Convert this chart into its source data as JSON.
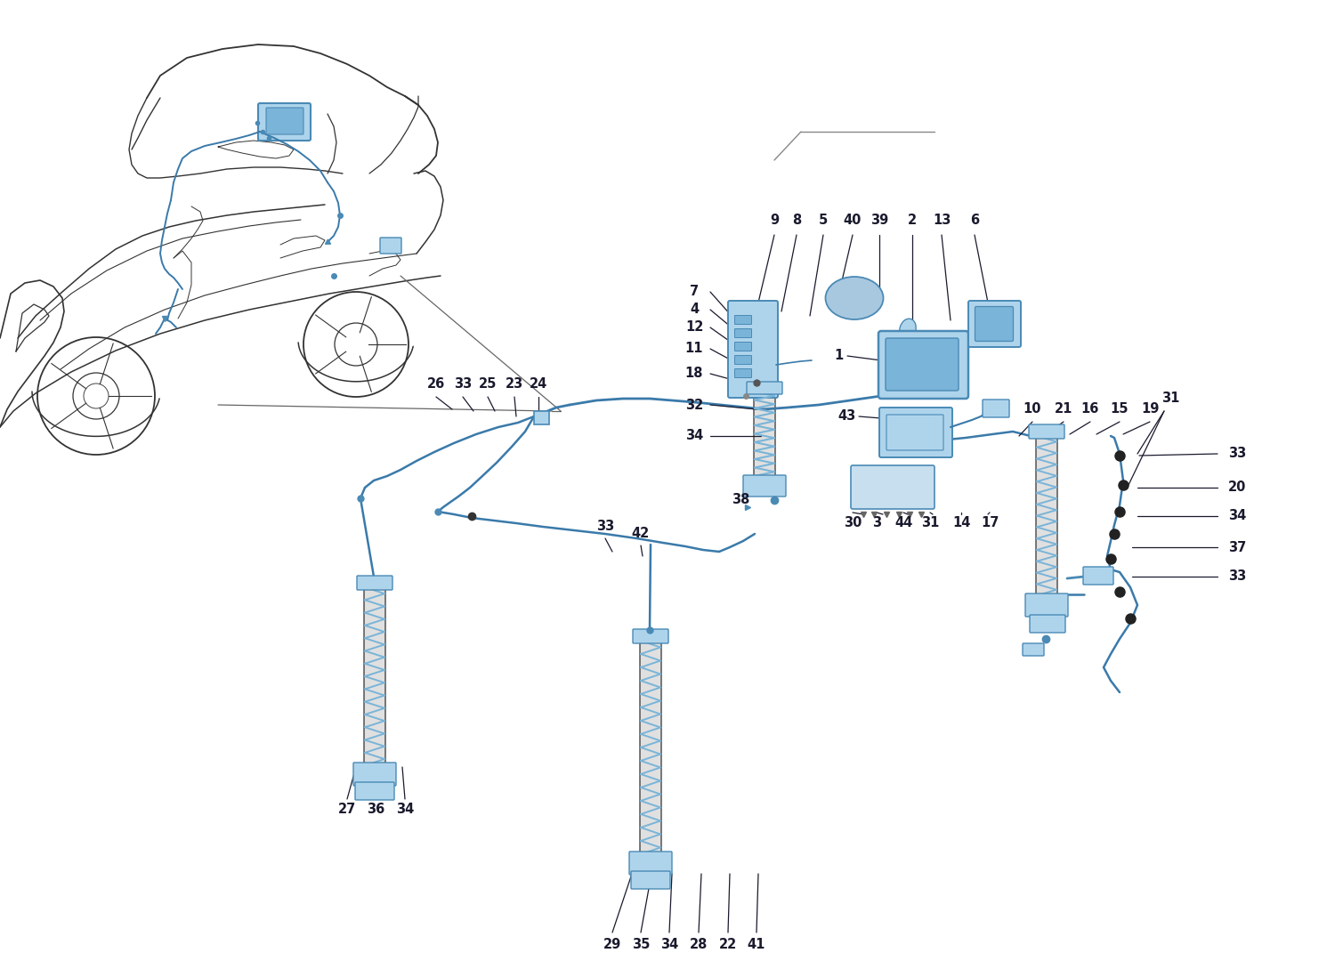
{
  "bg": "#ffffff",
  "dark": "#1a1a2e",
  "blue_fill": "#7ab4d8",
  "blue_light": "#aed4ec",
  "blue_dark": "#4a8ab5",
  "blue_line": "#3a7aaa",
  "gray_line": "#555577",
  "fig_w": 15.0,
  "fig_h": 10.89,
  "dpi": 100,
  "fs": 10.5,
  "fs_small": 9.5
}
